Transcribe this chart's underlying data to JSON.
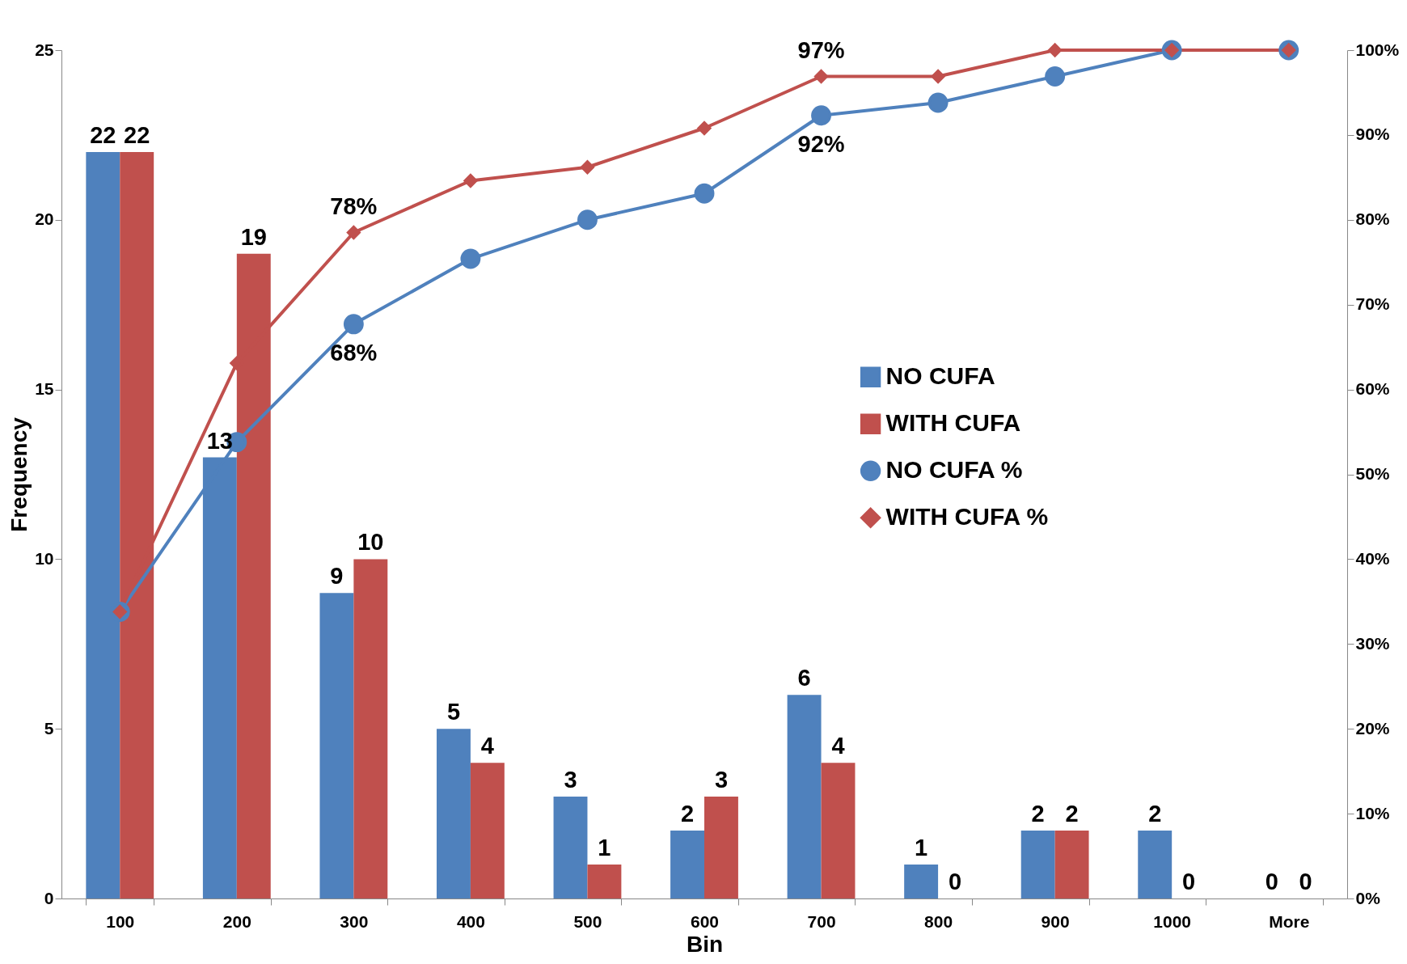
{
  "chart_data": {
    "type": "bar",
    "xlabel": "Bin",
    "ylabel": "Frequency",
    "categories": [
      "100",
      "200",
      "300",
      "400",
      "500",
      "600",
      "700",
      "800",
      "900",
      "1000",
      "More"
    ],
    "series": [
      {
        "name": "NO CUFA",
        "color": "#4f81bd",
        "values": [
          22,
          13,
          9,
          5,
          3,
          2,
          6,
          1,
          2,
          2,
          0
        ]
      },
      {
        "name": "WITH CUFA",
        "color": "#c0504d",
        "values": [
          22,
          19,
          10,
          4,
          1,
          3,
          4,
          0,
          2,
          0,
          0
        ]
      },
      {
        "name": "NO CUFA %",
        "type": "line",
        "axis": "y2",
        "marker": "circle",
        "color": "#4f81bd",
        "values": [
          33.8,
          53.8,
          67.7,
          75.4,
          80,
          83.1,
          92.3,
          93.8,
          96.9,
          100,
          100
        ],
        "value_labels": [
          null,
          null,
          "68%",
          null,
          null,
          null,
          "92%",
          null,
          null,
          null,
          null
        ]
      },
      {
        "name": "WITH CUFA %",
        "type": "line",
        "axis": "y2",
        "marker": "diamond",
        "color": "#c0504d",
        "values": [
          33.8,
          63.1,
          78.5,
          84.6,
          86.2,
          90.8,
          96.9,
          96.9,
          100,
          100,
          100
        ],
        "value_labels": [
          null,
          null,
          "78%",
          null,
          null,
          null,
          "97%",
          null,
          null,
          null,
          null
        ]
      }
    ],
    "data_labels": true,
    "ylim": [
      0,
      25
    ],
    "yticks": [
      0,
      5,
      10,
      15,
      20,
      25
    ],
    "y2lim": [
      0,
      100
    ],
    "y2ticks": [
      {
        "value": 0,
        "label": "0%"
      },
      {
        "value": 10,
        "label": "10%"
      },
      {
        "value": 20,
        "label": "20%"
      },
      {
        "value": 30,
        "label": "30%"
      },
      {
        "value": 40,
        "label": "40%"
      },
      {
        "value": 50,
        "label": "50%"
      },
      {
        "value": 60,
        "label": "60%"
      },
      {
        "value": 70,
        "label": "70%"
      },
      {
        "value": 80,
        "label": "80%"
      },
      {
        "value": 90,
        "label": "90%"
      },
      {
        "value": 100,
        "label": "100%"
      }
    ],
    "legend": "right",
    "grid": false
  }
}
